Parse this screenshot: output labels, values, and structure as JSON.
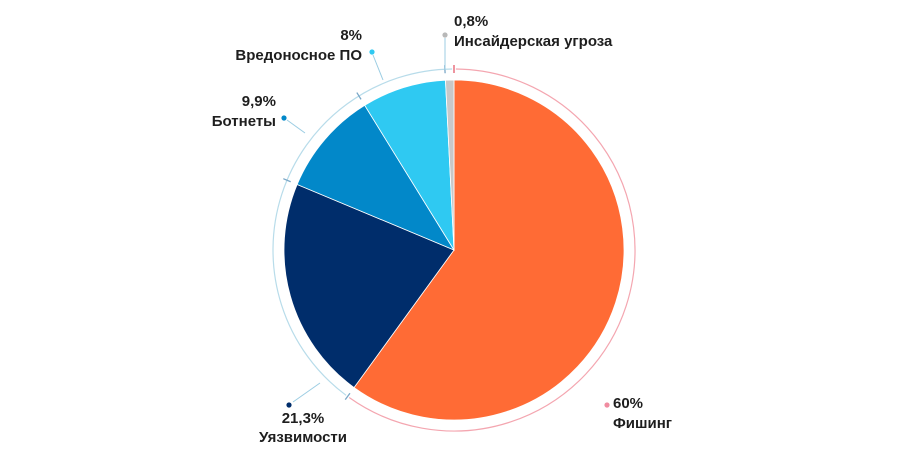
{
  "chart_data": {
    "type": "pie",
    "title": "",
    "slices": [
      {
        "name": "Фишинг",
        "value": 60,
        "label": "60%",
        "color": "#ff6b35"
      },
      {
        "name": "Уязвимости",
        "value": 21.3,
        "label": "21,3%",
        "color": "#002d6b"
      },
      {
        "name": "Ботнеты",
        "value": 9.9,
        "label": "9,9%",
        "color": "#0288c9"
      },
      {
        "name": "Вредоносное ПО",
        "value": 8,
        "label": "8%",
        "color": "#2fc9f2"
      },
      {
        "name": "Инсайдерская угроза",
        "value": 0.8,
        "label": "0,8%",
        "color": "#c8c8c8"
      }
    ],
    "legend": "outside labels"
  }
}
